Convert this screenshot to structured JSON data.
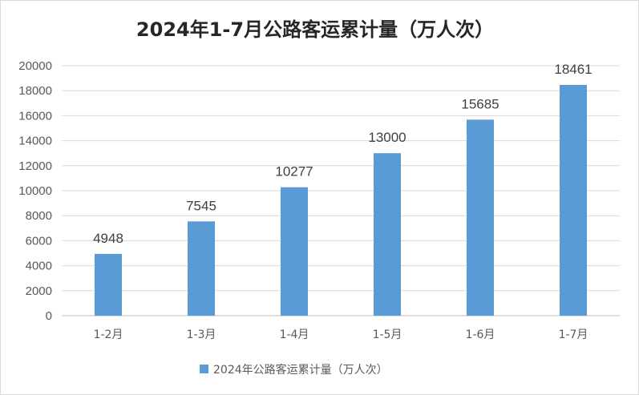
{
  "chart_data": {
    "type": "bar",
    "title": "2024年1-7月公路客运累计量（万人次）",
    "categories": [
      "1-2月",
      "1-3月",
      "1-4月",
      "1-5月",
      "1-6月",
      "1-7月"
    ],
    "series": [
      {
        "name": "2024年公路客运累计量（万人次）",
        "values": [
          4948,
          7545,
          10277,
          13000,
          15685,
          18461
        ],
        "color": "#5b9bd5"
      }
    ],
    "yticks": [
      "0",
      "2000",
      "4000",
      "6000",
      "8000",
      "10000",
      "12000",
      "14000",
      "16000",
      "18000",
      "20000"
    ],
    "ylim": [
      0,
      20000
    ],
    "grid": true,
    "legend": "bottom",
    "data_labels": [
      "4948",
      "7545",
      "10277",
      "13000",
      "15685",
      "18461"
    ]
  }
}
